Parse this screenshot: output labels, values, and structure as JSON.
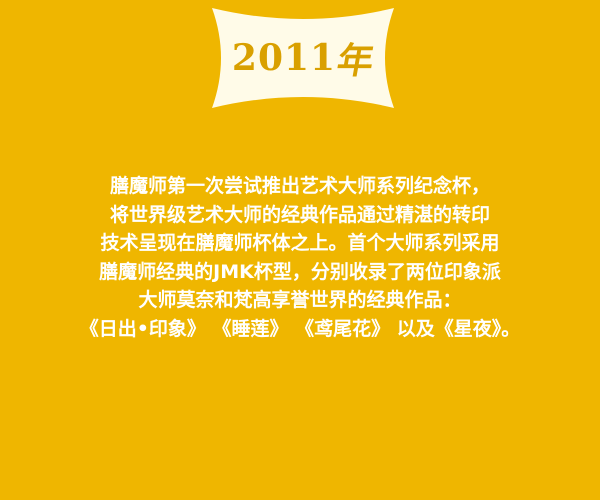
{
  "badge": {
    "year_number": "2011",
    "year_char": "年"
  },
  "description": {
    "lines": [
      "膳魔师第一次尝试推出艺术大师系列纪念杯，",
      "将世界级艺术大师的经典作品通过精湛的转印",
      "技术呈现在膳魔师杯体之上。首个大师系列采用",
      "膳魔师经典的JMK杯型，分别收录了两位印象派",
      "大师莫奈和梵高享誉世界的经典作品：",
      "《日出•印象》 《睡莲》 《鸢尾花》 以及《星夜》。"
    ]
  },
  "colors": {
    "background": "#efb600",
    "badge_fill": "#fffbe8",
    "badge_text": "#d9a000",
    "body_text": "#ffffff"
  }
}
